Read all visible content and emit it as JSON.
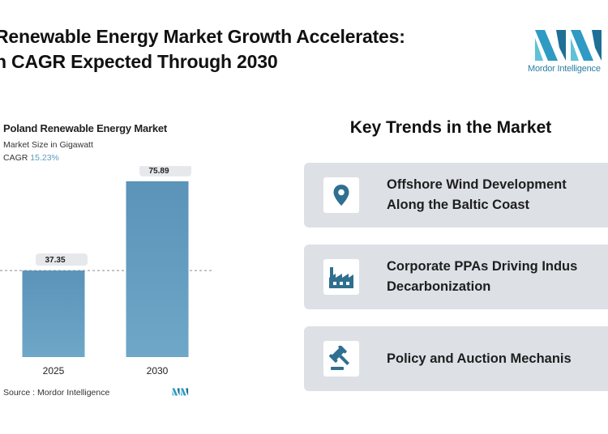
{
  "header": {
    "title_line1": "Renewable Energy Market Growth Accelerates:",
    "title_line2": "n CAGR Expected Through 2030"
  },
  "logo": {
    "brand": "Mordor Intelligence"
  },
  "colors": {
    "bar": "#5b93b9",
    "accent": "#5b9bbe",
    "card": "#dde1e6",
    "icon": "#2f6f8f"
  },
  "chart_data": {
    "type": "bar",
    "title": "Poland Renewable Energy Market",
    "subtitle": "Market Size in Gigawatt",
    "cagr_label": "CAGR",
    "cagr_value": "15.23%",
    "categories": [
      "2025",
      "2030"
    ],
    "values": [
      37.35,
      75.89
    ],
    "value_labels": [
      "37.35",
      "75.89"
    ],
    "ylim": [
      0,
      80
    ],
    "reference_line": 37.35,
    "grid": false,
    "source_label": "Source :",
    "source": "Mordor Intelligence"
  },
  "trends": {
    "title": "Key Trends in the Market",
    "items": [
      {
        "line1": "Offshore Wind Development",
        "line2": "Along the Baltic Coast",
        "icon": "location-pin-icon"
      },
      {
        "line1": "Corporate PPAs Driving Indus",
        "line2": "Decarbonization",
        "icon": "factory-icon"
      },
      {
        "line1": "Policy and Auction Mechanis",
        "line2": "",
        "icon": "gavel-icon"
      }
    ]
  }
}
